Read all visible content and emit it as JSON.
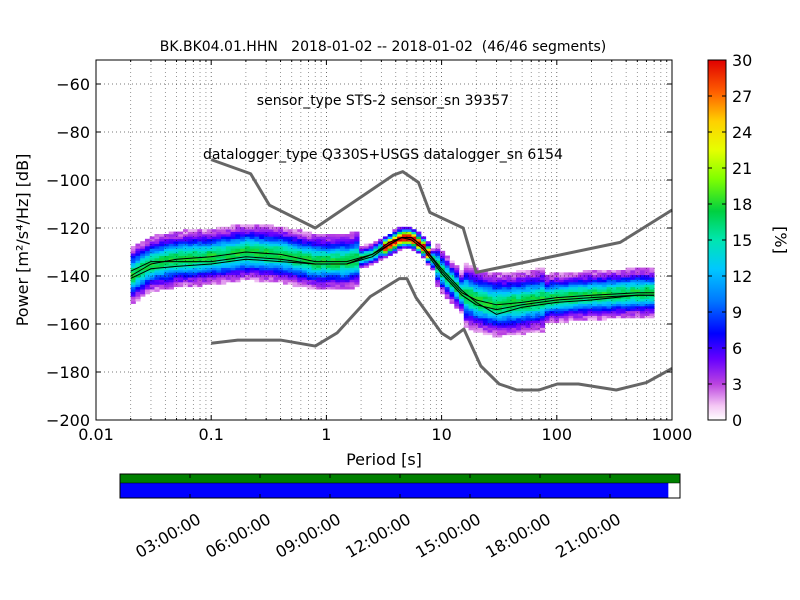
{
  "chart_data": {
    "type": "heatmap",
    "title_lines": [
      "BK.BK04.01.HHN   2018-01-02 -- 2018-01-02  (46/46 segments)",
      "sensor_type STS-2 sensor_sn 39357",
      "datalogger_type Q330S+USGS datalogger_sn 6154"
    ],
    "xlabel": "Period [s]",
    "ylabel": "Power [m²/s⁴/Hz] [dB]",
    "x_scale": "log",
    "xlim": [
      0.01,
      1000
    ],
    "ylim": [
      -200,
      -50
    ],
    "x_tick_labels": [
      "0.01",
      "0.1",
      "1",
      "10",
      "100",
      "1000"
    ],
    "x_tick_values": [
      0.01,
      0.1,
      1,
      10,
      100,
      1000
    ],
    "y_tick_labels": [
      "−200",
      "−180",
      "−160",
      "−140",
      "−120",
      "−100",
      "−80",
      "−60"
    ],
    "y_tick_values": [
      -200,
      -180,
      -160,
      -140,
      -120,
      -100,
      -80,
      -60
    ],
    "grid": "dotted",
    "colorbar": {
      "label": "[%]",
      "range": [
        0,
        30
      ],
      "tick_labels": [
        "0",
        "3",
        "6",
        "9",
        "12",
        "15",
        "18",
        "21",
        "24",
        "27",
        "30"
      ],
      "tick_values": [
        0,
        3,
        6,
        9,
        12,
        15,
        18,
        21,
        24,
        27,
        30
      ],
      "colormap": "pqlx"
    },
    "new_high_noise_model": {
      "period": [
        0.1,
        0.22,
        0.32,
        0.8,
        3.8,
        4.6,
        6.3,
        7.9,
        15.4,
        20,
        354.8,
        1000
      ],
      "db": [
        -91.5,
        -97.4,
        -110.5,
        -120,
        -98,
        -96.5,
        -101,
        -113.5,
        -120,
        -138.5,
        -126,
        -112.5
      ]
    },
    "new_low_noise_model": {
      "period": [
        0.1,
        0.17,
        0.4,
        0.8,
        1.24,
        2.4,
        4.3,
        5.0,
        6.0,
        10.0,
        12.0,
        15.6,
        21.9,
        31.6,
        45,
        70,
        101,
        154,
        328,
        600,
        1000
      ],
      "db": [
        -168,
        -166.7,
        -166.7,
        -169.2,
        -163.7,
        -148.6,
        -141.1,
        -141.1,
        -149,
        -163.8,
        -166.2,
        -162.1,
        -177.5,
        -185,
        -187.5,
        -187.5,
        -185,
        -185,
        -187.5,
        -184.4,
        -178.5
      ]
    },
    "median_psd": {
      "period": [
        0.02,
        0.03,
        0.05,
        0.1,
        0.2,
        0.4,
        0.8,
        1.5,
        2.5,
        3.5,
        4.5,
        5.5,
        7,
        10,
        15,
        20,
        30,
        50,
        100,
        200,
        500,
        700
      ],
      "db": [
        -140,
        -135,
        -133,
        -132,
        -130,
        -131,
        -134,
        -134,
        -131,
        -127,
        -124,
        -124,
        -128,
        -138,
        -147,
        -150,
        -152,
        -151,
        -149,
        -148,
        -147,
        -147
      ]
    },
    "mean_psd": {
      "period": [
        0.02,
        0.03,
        0.05,
        0.1,
        0.2,
        0.4,
        0.8,
        1.5,
        2.5,
        3.5,
        4.5,
        5.5,
        7,
        10,
        15,
        20,
        30,
        50,
        100,
        200,
        500,
        700
      ],
      "db": [
        -138,
        -134,
        -134,
        -134,
        -132,
        -133,
        -135,
        -135,
        -131,
        -126,
        -124,
        -125,
        -129,
        -139,
        -148,
        -152,
        -154,
        -152,
        -150,
        -149,
        -148,
        -148
      ]
    },
    "mode_psd": {
      "period": [
        0.02,
        0.03,
        0.05,
        0.1,
        0.2,
        0.4,
        0.8,
        1.5,
        2.5,
        3.5,
        4.5,
        5.5,
        7,
        10,
        15,
        20,
        30,
        50,
        100,
        200,
        500,
        700
      ],
      "db": [
        -141,
        -137,
        -136,
        -135,
        -133,
        -134,
        -135,
        -135,
        -132,
        -127,
        -124,
        -124,
        -128,
        -137,
        -146,
        -151,
        -156,
        -153,
        -151,
        -150,
        -148,
        -148
      ]
    },
    "timeline": {
      "tick_labels": [
        "03:00:00",
        "06:00:00",
        "09:00:00",
        "12:00:00",
        "15:00:00",
        "18:00:00",
        "21:00:00"
      ],
      "tick_hours": [
        3,
        6,
        9,
        12,
        15,
        18,
        21
      ],
      "range_hours": [
        0,
        24
      ],
      "data_coverage_end_hours": 23.5,
      "top_bar_color": "#008000",
      "bottom_bar_color": "#0000ff"
    }
  }
}
